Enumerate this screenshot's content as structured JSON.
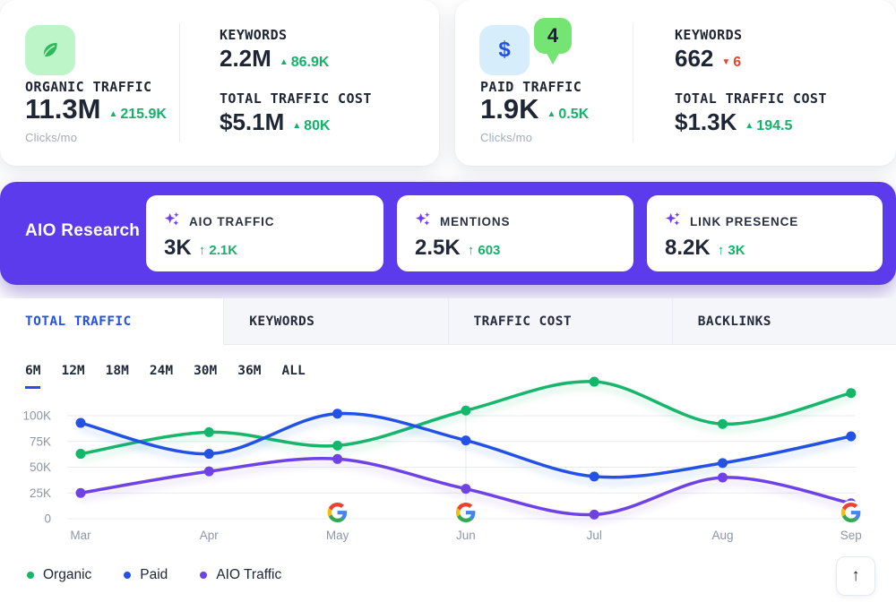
{
  "glyphs": {
    "up": "▲",
    "down": "▼",
    "arrow_up": "↑"
  },
  "colors": {
    "band_purple": "#5b3beb",
    "green": "#12b76a",
    "blue": "#2451e6",
    "aio_purple": "#6e42e5",
    "red": "#e4472f",
    "tab_active_blue": "#2451e6"
  },
  "organic_card": {
    "label": "ORGANIC TRAFFIC",
    "value": "11.3M",
    "delta": "215.9K",
    "unit": "Clicks/mo",
    "keywords_label": "KEYWORDS",
    "keywords_value": "2.2M",
    "keywords_delta": "86.9K",
    "cost_label": "TOTAL TRAFFIC COST",
    "cost_value": "$5.1M",
    "cost_delta": "80K"
  },
  "paid_card": {
    "badge": "4",
    "dollar": "$",
    "label": "PAID TRAFFIC",
    "value": "1.9K",
    "delta": "0.5K",
    "unit": "Clicks/mo",
    "keywords_label": "KEYWORDS",
    "keywords_value": "662",
    "keywords_delta": "6",
    "cost_label": "TOTAL TRAFFIC COST",
    "cost_value": "$1.3K",
    "cost_delta": "194.5"
  },
  "aio_band": {
    "title": "AIO Research",
    "cards": [
      {
        "label": "AIO TRAFFIC",
        "value": "3K",
        "delta": "2.1K"
      },
      {
        "label": "MENTIONS",
        "value": "2.5K",
        "delta": "603"
      },
      {
        "label": "LINK PRESENCE",
        "value": "8.2K",
        "delta": "3K"
      }
    ]
  },
  "tabs": {
    "items": [
      {
        "label": "TOTAL TRAFFIC",
        "active": true
      },
      {
        "label": "KEYWORDS",
        "active": false
      },
      {
        "label": "TRAFFIC COST",
        "active": false
      },
      {
        "label": "BACKLINKS",
        "active": false
      }
    ]
  },
  "ranges": {
    "items": [
      "6M",
      "12M",
      "18M",
      "24M",
      "30M",
      "36M",
      "ALL"
    ],
    "active": "6M"
  },
  "chart_data": {
    "type": "line",
    "x": [
      "Mar",
      "Apr",
      "May",
      "Jun",
      "Jul",
      "Aug",
      "Sep"
    ],
    "series": [
      {
        "name": "Organic",
        "color": "#12b76a",
        "values": [
          63000,
          84000,
          71000,
          105000,
          133000,
          92000,
          122000
        ]
      },
      {
        "name": "Paid",
        "color": "#2451e6",
        "values": [
          93000,
          63000,
          102000,
          76000,
          41000,
          54000,
          80000
        ]
      },
      {
        "name": "AIO Traffic",
        "color": "#6e42e5",
        "values": [
          25000,
          46000,
          58000,
          29000,
          4000,
          40000,
          15000
        ]
      }
    ],
    "yticks": [
      {
        "value": 100000,
        "label": "100K"
      },
      {
        "value": 75000,
        "label": "75K"
      },
      {
        "value": 50000,
        "label": "50K"
      },
      {
        "value": 25000,
        "label": "25K"
      },
      {
        "value": 0,
        "label": "0"
      }
    ],
    "ylim": [
      0,
      140000
    ],
    "grid": "horizontal",
    "vline_at": "Jun",
    "google_markers": [
      "May",
      "Jun",
      "Sep"
    ],
    "legend_position": "bottom-left"
  },
  "legend": {
    "items": [
      {
        "label": "Organic",
        "color": "#12b76a"
      },
      {
        "label": "Paid",
        "color": "#2451e6"
      },
      {
        "label": "AIO Traffic",
        "color": "#6e42e5"
      }
    ]
  },
  "scroll_top": {
    "glyph": "↑"
  }
}
